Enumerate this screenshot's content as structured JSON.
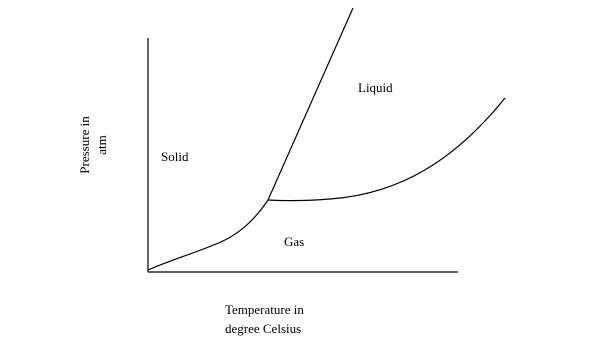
{
  "axes": {
    "y_label": [
      "Pressure in",
      "atm"
    ],
    "x_label": [
      "Temperature in",
      "degree Celsius"
    ]
  },
  "regions": {
    "solid": "Solid",
    "liquid": "Liquid",
    "gas": "Gas"
  }
}
